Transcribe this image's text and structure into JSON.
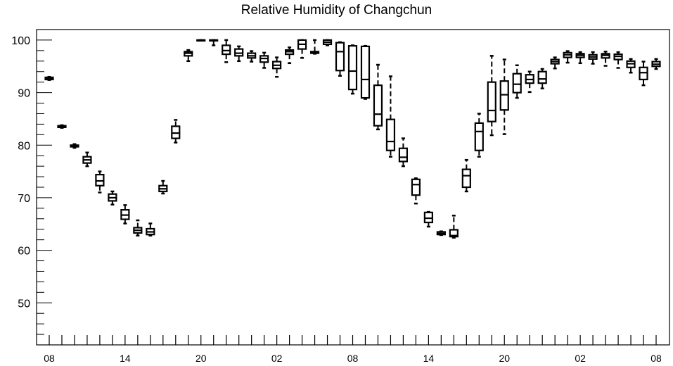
{
  "chart_data": {
    "type": "boxplot",
    "title": "Relative Humidity of Changchun",
    "xlabel": "",
    "ylabel": "",
    "ylim": [
      42,
      102
    ],
    "yticks": [
      50,
      60,
      70,
      80,
      90,
      100
    ],
    "x_tick_labels": [
      {
        "x": 0,
        "label": "08"
      },
      {
        "x": 6,
        "label": "14"
      },
      {
        "x": 12,
        "label": "20"
      },
      {
        "x": 18,
        "label": "02"
      },
      {
        "x": 24,
        "label": "08"
      },
      {
        "x": 30,
        "label": "14"
      },
      {
        "x": 36,
        "label": "20"
      },
      {
        "x": 42,
        "label": "02"
      },
      {
        "x": 48,
        "label": "08"
      }
    ],
    "grid": false,
    "boxes": [
      {
        "x": 0,
        "whisker_low": 92.4,
        "q1": 92.5,
        "median": 92.7,
        "q3": 92.9,
        "whisker_high": 93.0
      },
      {
        "x": 1,
        "whisker_low": 83.3,
        "q1": 83.4,
        "median": 83.6,
        "q3": 83.7,
        "whisker_high": 83.8
      },
      {
        "x": 2,
        "whisker_low": 79.5,
        "q1": 79.7,
        "median": 79.9,
        "q3": 80.0,
        "whisker_high": 80.2
      },
      {
        "x": 3,
        "whisker_low": 76.0,
        "q1": 76.6,
        "median": 77.2,
        "q3": 77.8,
        "whisker_high": 78.6
      },
      {
        "x": 4,
        "whisker_low": 71.0,
        "q1": 72.3,
        "median": 73.2,
        "q3": 74.4,
        "whisker_high": 75.0
      },
      {
        "x": 5,
        "whisker_low": 68.7,
        "q1": 69.4,
        "median": 70.0,
        "q3": 70.7,
        "whisker_high": 71.2
      },
      {
        "x": 6,
        "whisker_low": 65.1,
        "q1": 65.9,
        "median": 66.7,
        "q3": 67.7,
        "whisker_high": 68.6
      },
      {
        "x": 7,
        "whisker_low": 62.8,
        "q1": 63.3,
        "median": 63.8,
        "q3": 64.3,
        "whisker_high": 65.7
      },
      {
        "x": 8,
        "whisker_low": 62.8,
        "q1": 63.0,
        "median": 63.5,
        "q3": 64.1,
        "whisker_high": 65.1
      },
      {
        "x": 9,
        "whisker_low": 70.8,
        "q1": 71.2,
        "median": 71.7,
        "q3": 72.3,
        "whisker_high": 73.2
      },
      {
        "x": 10,
        "whisker_low": 80.5,
        "q1": 81.3,
        "median": 82.3,
        "q3": 83.6,
        "whisker_high": 84.8
      },
      {
        "x": 11,
        "whisker_low": 96.0,
        "q1": 97.0,
        "median": 97.5,
        "q3": 97.8,
        "whisker_high": 98.1
      },
      {
        "x": 12,
        "whisker_low": 99.9,
        "q1": 100.0,
        "median": 100.0,
        "q3": 100.0,
        "whisker_high": 100.0
      },
      {
        "x": 13,
        "whisker_low": 99.0,
        "q1": 100.0,
        "median": 100.0,
        "q3": 100.0,
        "whisker_high": 100.0
      },
      {
        "x": 14,
        "whisker_low": 95.8,
        "q1": 97.3,
        "median": 98.0,
        "q3": 99.0,
        "whisker_high": 100.0
      },
      {
        "x": 15,
        "whisker_low": 96.0,
        "q1": 97.0,
        "median": 97.5,
        "q3": 98.3,
        "whisker_high": 98.8
      },
      {
        "x": 16,
        "whisker_low": 95.9,
        "q1": 96.6,
        "median": 97.0,
        "q3": 97.5,
        "whisker_high": 97.9
      },
      {
        "x": 17,
        "whisker_low": 94.7,
        "q1": 95.8,
        "median": 96.5,
        "q3": 97.0,
        "whisker_high": 97.6
      },
      {
        "x": 18,
        "whisker_low": 93.0,
        "q1": 94.6,
        "median": 95.2,
        "q3": 95.9,
        "whisker_high": 96.7
      },
      {
        "x": 19,
        "whisker_low": 95.6,
        "q1": 97.3,
        "median": 97.8,
        "q3": 98.1,
        "whisker_high": 98.6
      },
      {
        "x": 20,
        "whisker_low": 96.6,
        "q1": 98.3,
        "median": 99.2,
        "q3": 100.0,
        "whisker_high": 100.0
      },
      {
        "x": 21,
        "whisker_low": 97.4,
        "q1": 97.5,
        "median": 97.7,
        "q3": 97.8,
        "whisker_high": 100.0
      },
      {
        "x": 22,
        "whisker_low": 99.0,
        "q1": 99.2,
        "median": 99.6,
        "q3": 100.0,
        "whisker_high": 100.0
      },
      {
        "x": 23,
        "whisker_low": 93.2,
        "q1": 94.2,
        "median": 97.8,
        "q3": 99.5,
        "whisker_high": 99.6
      },
      {
        "x": 24,
        "whisker_low": 89.8,
        "q1": 90.6,
        "median": 94.1,
        "q3": 98.9,
        "whisker_high": 99.0
      },
      {
        "x": 25,
        "whisker_low": 88.8,
        "q1": 89.0,
        "median": 92.5,
        "q3": 98.8,
        "whisker_high": 98.9
      },
      {
        "x": 26,
        "whisker_low": 83.0,
        "q1": 83.7,
        "median": 85.9,
        "q3": 91.4,
        "whisker_high": 95.3
      },
      {
        "x": 27,
        "whisker_low": 77.8,
        "q1": 79.0,
        "median": 80.7,
        "q3": 84.9,
        "whisker_high": 93.1
      },
      {
        "x": 28,
        "whisker_low": 76.0,
        "q1": 76.9,
        "median": 77.7,
        "q3": 79.4,
        "whisker_high": 81.3
      },
      {
        "x": 29,
        "whisker_low": 68.9,
        "q1": 70.5,
        "median": 72.5,
        "q3": 73.5,
        "whisker_high": 73.7
      },
      {
        "x": 30,
        "whisker_low": 64.5,
        "q1": 65.3,
        "median": 66.1,
        "q3": 67.2,
        "whisker_high": 67.3
      },
      {
        "x": 31,
        "whisker_low": 62.9,
        "q1": 63.0,
        "median": 63.2,
        "q3": 63.5,
        "whisker_high": 63.6
      },
      {
        "x": 32,
        "whisker_low": 62.4,
        "q1": 62.6,
        "median": 62.8,
        "q3": 63.9,
        "whisker_high": 66.6
      },
      {
        "x": 33,
        "whisker_low": 71.2,
        "q1": 72.0,
        "median": 74.2,
        "q3": 75.4,
        "whisker_high": 77.2
      },
      {
        "x": 34,
        "whisker_low": 77.8,
        "q1": 79.0,
        "median": 82.6,
        "q3": 84.2,
        "whisker_high": 86.0
      },
      {
        "x": 35,
        "whisker_low": 81.9,
        "q1": 84.5,
        "median": 86.6,
        "q3": 92.0,
        "whisker_high": 97.0
      },
      {
        "x": 36,
        "whisker_low": 82.1,
        "q1": 86.7,
        "median": 89.6,
        "q3": 92.2,
        "whisker_high": 96.3
      },
      {
        "x": 37,
        "whisker_low": 89.0,
        "q1": 90.0,
        "median": 91.6,
        "q3": 93.6,
        "whisker_high": 95.2
      },
      {
        "x": 38,
        "whisker_low": 90.1,
        "q1": 91.8,
        "median": 92.5,
        "q3": 93.4,
        "whisker_high": 94.0
      },
      {
        "x": 39,
        "whisker_low": 90.8,
        "q1": 91.8,
        "median": 92.6,
        "q3": 94.0,
        "whisker_high": 94.5
      },
      {
        "x": 40,
        "whisker_low": 94.6,
        "q1": 95.5,
        "median": 95.9,
        "q3": 96.3,
        "whisker_high": 96.7
      },
      {
        "x": 41,
        "whisker_low": 95.7,
        "q1": 96.7,
        "median": 97.2,
        "q3": 97.6,
        "whisker_high": 97.9
      },
      {
        "x": 42,
        "whisker_low": 95.6,
        "q1": 96.7,
        "median": 97.1,
        "q3": 97.4,
        "whisker_high": 97.7
      },
      {
        "x": 43,
        "whisker_low": 95.5,
        "q1": 96.4,
        "median": 96.8,
        "q3": 97.2,
        "whisker_high": 97.7
      },
      {
        "x": 44,
        "whisker_low": 95.1,
        "q1": 96.6,
        "median": 97.1,
        "q3": 97.4,
        "whisker_high": 97.8
      },
      {
        "x": 45,
        "whisker_low": 94.7,
        "q1": 96.3,
        "median": 96.9,
        "q3": 97.3,
        "whisker_high": 97.7
      },
      {
        "x": 46,
        "whisker_low": 93.8,
        "q1": 94.8,
        "median": 95.5,
        "q3": 96.0,
        "whisker_high": 96.4
      },
      {
        "x": 47,
        "whisker_low": 91.4,
        "q1": 92.5,
        "median": 93.8,
        "q3": 94.8,
        "whisker_high": 95.9
      },
      {
        "x": 48,
        "whisker_low": 94.5,
        "q1": 95.0,
        "median": 95.4,
        "q3": 95.9,
        "whisker_high": 96.4
      }
    ]
  }
}
